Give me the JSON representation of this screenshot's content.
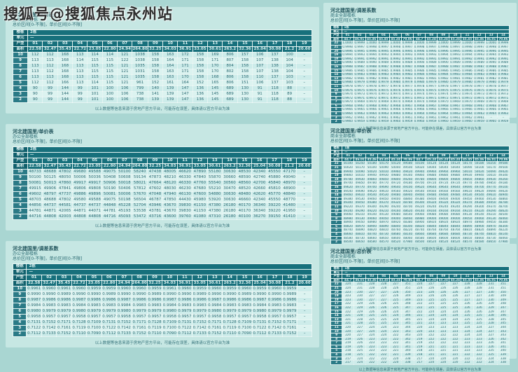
{
  "watermark": "搜狐号@搜狐焦点永州站",
  "footnote": "以上数据等信息来源于房地产官方平台，可能存在误差，具体请以官方平台为准",
  "row_labels": {
    "building": "楼栋",
    "unit": "单元",
    "type": "户型",
    "area": "面积"
  },
  "colors": {
    "page_bg": "#a9d6d2",
    "card_bg": "#c6e7e3",
    "header_bg": "#17707c",
    "floor_label_bg": "#2a7a86",
    "row_alt_a": "#cdecea",
    "row_alt_b": "#dcf3f0",
    "text_dark": "#2a6a72",
    "header_text": "#ddf2f1"
  },
  "tables": [
    {
      "title": "河北建国里/总价表",
      "subtitle": "办公全部楼栋",
      "range": "总价区间[0-不限]，单价区间[0-不限]",
      "building": "2栋",
      "unit": "—",
      "types": "01 02 03 04 05 06 07 08 09 10 11 12 13 14 15 16 17 18 19",
      "areas": "22.58 32.47 35.43 22.72 23.05 22.80 24.94 264.80 32.25 34.03 36.91 33.05 30.61 263.2 32.36 25.04 30.08 21.2 20.60",
      "rows": [
        {
          "floor": "10",
          "values": "112 112 168 113 114 114 121 1038 158 163 172 158 169 806 157 106 137 100 -"
        },
        {
          "floor": "9",
          "values": "113 113 168 114 115 115 122 1038 158 164 171 158 171 807 158 107 138 104 -"
        },
        {
          "floor": "8",
          "values": "113 112 168 113 115 115 121 1035 158 164 171 158 170 804 158 107 138 104 -"
        },
        {
          "floor": "7",
          "values": "113 112 168 113 115 115 121 1031 158 163 171 158 170 802 158 107 138 104 -"
        },
        {
          "floor": "6",
          "values": "113 113 168 113 115 115 121 1035 158 163 170 158 168 806 158 110 137 103 -"
        },
        {
          "floor": "5",
          "values": "112 112 166 113 114 115 121 961 152 161 164 152 165 806 151 106 137 103 -"
        },
        {
          "floor": "4",
          "values": "90 99 144 99 101 100 106 799 140 139 147 136 145 689 130 91 118 88 -"
        },
        {
          "floor": "3",
          "values": "90 99 144 99 101 100 106 738 141 139 147 136 145 689 130 91 118 89 -"
        },
        {
          "floor": "2",
          "values": "90 99 144 99 101 100 106 738 139 139 147 136 145 689 130 91 118 88 -"
        }
      ]
    },
    {
      "title": "河北建国里/单价表",
      "subtitle": "办公全部楼栋",
      "range": "总价区间[0-不限]，单价区间[0-不限]",
      "building": "2栋",
      "unit": "—",
      "types": "01 02 03 04 05 06 07 08 09 10 11 12 13 14 15 16 17 18 19",
      "areas": "22.58 32.47 35.43 22.72 23.05 22.80 24.94 264.80 32.25 34.03 36.91 33.05 30.61 263.2 32.36 25.04 30.08 21.2 20.60",
      "rows": [
        {
          "floor": "10",
          "values": "48733 48688 47802 49680 49588 49075 50100 58240 47438 48005 46620 47890 55180 30630 48530 42340 45550 47170 -"
        },
        {
          "floor": "9",
          "values": "50100 50125 48050 50006 50036 50408 50608 59134 47873 48210 46330 47840 55870 30660 48590 42740 45880 49040 -"
        },
        {
          "floor": "8",
          "values": "50081 50013 47860 49917 49917 50906 50018 58021 47664 48120 46330 47760 55540 30560 48560 42700 45840 48970 -"
        },
        {
          "floor": "7",
          "values": "49915 49906 47841 49806 49808 50190 50406 57812 47602 48030 46230 47680 55210 30470 48520 42660 45810 48900 -"
        },
        {
          "floor": "6",
          "values": "49602 48797 47737 49886 49896 50081 50006 57670 47048 47940 46130 47600 54880 30630 48480 42620 45770 48840 -"
        },
        {
          "floor": "5",
          "values": "48703 48688 47802 49580 49588 49075 50198 56504 46787 47850 44430 45980 53920 30630 46660 42340 45550 48770 -"
        },
        {
          "floor": "4",
          "values": "44856 44737 44581 44737 44737 44848 45228 52704 43946 43670 39830 41150 47380 26180 40170 36340 39220 41480 -"
        },
        {
          "floor": "3",
          "values": "44781 44871 42065 44871 44071 44781 45193 53538 43781 43670 39830 41150 47380 26180 40170 36340 39220 41950 -"
        },
        {
          "floor": "2",
          "values": "44716 44808 42003 44808 44808 44716 45093 53472 43716 43600 39760 41080 47310 26180 40100 36270 39150 41410 -"
        }
      ]
    },
    {
      "title": "河北建国里/调差系数",
      "subtitle": "办公全部楼栋",
      "range": "总价区间[0-不限]，单价区间[0-不限]",
      "building": "2栋",
      "unit": "—",
      "types": "01 02 03 04 05 06 07 08 09 10 11 12 13 14 15 16 17 18 19",
      "areas": "22.58 32.47 35.43 22.72 23.05 22.80 24.94 264.80 32.25 34.03 36.91 33.05 30.61 263.2 32.36 25.04 30.08 21.2 20.60",
      "rows": [
        {
          "floor": "10",
          "values": "0.9961 0.9960 0.9961 0.9960 0.9959 0.9959 0.9960 0.9960 0.9959 0.9961 0.9960 0.9959 0.9960 0.9959 0.9960 0.9959 0.9960 0.9959 -"
        },
        {
          "floor": "9",
          "values": "0.9990 0.9990 0.9989 0.9990 0.9990 0.9989 0.9990 0.9990 0.9989 0.9990 0.9990 0.9989 0.9990 0.9990 0.9989 0.9990 0.9990 0.9989 -"
        },
        {
          "floor": "8",
          "values": "0.9987 0.9986 0.9986 0.9987 0.9986 0.9986 0.9987 0.9986 0.9986 0.9987 0.9986 0.9986 0.9987 0.9986 0.9986 0.9987 0.9986 0.9986 -"
        },
        {
          "floor": "7",
          "values": "0.9984 0.9983 0.9983 0.9984 0.9983 0.9983 0.9984 0.9983 0.9983 0.9984 0.9983 0.9983 0.9984 0.9983 0.9983 0.9984 0.9983 0.9983 -"
        },
        {
          "floor": "6",
          "values": "0.9980 0.9979 0.9979 0.9980 0.9979 0.9979 0.9980 0.9979 0.9979 0.9980 0.9979 0.9979 0.9980 0.9979 0.9979 0.9980 0.9979 0.9979 -"
        },
        {
          "floor": "5",
          "values": "0.9958 0.9957 0.9957 0.9958 0.9957 0.9957 0.9958 0.9957 0.9957 0.9958 0.9957 0.9957 0.9958 0.9957 0.9957 0.9958 0.9957 0.9957 -"
        },
        {
          "floor": "4",
          "values": "0.7131 0.7152 0.7171 0.7128 0.7109 0.7131 0.7152 0.7171 0.7128 0.7109 0.7131 0.7152 0.7171 0.7128 0.7109 0.7131 0.7152 0.7171 -"
        },
        {
          "floor": "3",
          "values": "0.7122 0.7142 0.7161 0.7119 0.7100 0.7122 0.7142 0.7161 0.7119 0.7100 0.7122 0.7142 0.7161 0.7119 0.7100 0.7122 0.7142 0.7161 -"
        },
        {
          "floor": "2",
          "values": "0.7112 0.7133 0.7152 0.7110 0.7090 0.7112 0.7133 0.7152 0.7110 0.7090 0.7112 0.7133 0.7152 0.7110 0.7090 0.7112 0.7133 0.7152 -"
        }
      ]
    },
    {
      "title": "河北建国里/调差系数",
      "subtitle": "商业全部楼栋",
      "range": "总价区间[0-不限]，单价区间[0-不限]",
      "building": "1栋",
      "unit": "—",
      "types": "01 02 03 04 05 06 07 08 09 10 11 12 13 14",
      "areas": "44.7 46.01 45.46 45.45 45.24 70.86 44.7 45.24 45.24 45.24 45.45 45.46 46.01 70.86",
      "rows": [
        {
          "floor": "22",
          "values": "1.0000 0.9999 1.0000 0.9999 1.0000 0.9999 1.0000 0.9999 1.0000 0.9999 1.0000 0.9999 1.0000 0.9999"
        },
        {
          "floor": "21",
          "values": "0.9998 0.9997 0.9998 0.9997 0.9998 0.9997 0.9998 0.9997 0.9998 0.9997 0.9998 0.9997 0.9998 0.9997"
        },
        {
          "floor": "20",
          "values": "0.9996 0.9995 0.9996 0.9995 0.9996 0.9995 0.9996 0.9995 0.9996 0.9995 0.9996 0.9995 0.9996 0.9995"
        },
        {
          "floor": "19",
          "values": "0.9994 0.9993 0.9994 0.9993 0.9994 0.9993 0.9994 0.9993 0.9994 0.9993 0.9994 0.9993 0.9994 0.9993"
        },
        {
          "floor": "18",
          "values": "0.9992 0.9991 0.9992 0.9991 0.9992 0.9991 0.9992 0.9991 0.9992 0.9991 0.9992 0.9991 0.9992 0.9991"
        },
        {
          "floor": "17",
          "values": "0.9990 0.9989 0.9990 0.9989 0.9990 0.9989 0.9990 0.9989 0.9990 0.9989 0.9990 0.9989 0.9990 0.9989"
        },
        {
          "floor": "16",
          "values": "0.9988 0.9987 0.9988 0.9987 0.9988 0.9987 0.9988 0.9987 0.9988 0.9987 0.9988 0.9987 0.9988 0.9987"
        },
        {
          "floor": "15",
          "values": "0.9986 0.9985 0.9986 0.9985 0.9986 0.9985 0.9986 0.9985 0.9986 0.9985 0.9986 0.9985 0.9986 0.9985"
        },
        {
          "floor": "14",
          "values": "0.9984 0.9983 0.9984 0.9983 0.9984 0.9983 0.9984 0.9983 0.9984 0.9983 0.9984 0.9983 0.9984 0.9983"
        },
        {
          "floor": "13",
          "values": "0.9982 0.9981 0.9982 0.9981 0.9982 0.9981 0.9982 0.9981 0.9982 0.9981 0.9982 0.9981 0.9982 0.9981"
        },
        {
          "floor": "12",
          "values": "0.9980 0.9979 0.9980 0.9979 0.9980 0.9979 0.9980 0.9979 0.9980 0.9979 0.9980 0.9979 0.9980 0.9979"
        },
        {
          "floor": "11",
          "values": "0.9978 0.9977 0.9978 0.9977 0.9978 0.9977 0.9978 0.9977 0.9978 0.9977 0.9978 0.9977 0.9978 0.9977"
        },
        {
          "floor": "10",
          "values": "0.9976 0.9975 0.9976 0.9975 0.9976 0.9975 0.9976 0.9975 0.9976 0.9975 0.9976 0.9975 0.9976 0.9975"
        },
        {
          "floor": "9",
          "values": "0.9974 0.9973 0.9974 0.9973 0.9974 0.9973 0.9974 0.9973 0.9974 0.9973 0.9974 0.9973 0.9974 0.9973"
        },
        {
          "floor": "8",
          "values": "0.9972 0.9971 0.9972 0.9971 0.9972 0.9971 0.9972 0.9971 0.9972 0.9971 0.9972 0.9971 0.9972 0.9971"
        },
        {
          "floor": "7",
          "values": "0.9970 0.9969 0.9970 0.9969 0.9970 0.9969 0.9970 0.9969 0.9970 0.9969 0.9970 0.9969 0.9970 0.9969"
        },
        {
          "floor": "6",
          "values": "0.9968 0.9967 0.9968 0.9967 0.9968 0.9967 0.9968 0.9967 0.9968 0.9967 0.9968 0.9967 0.9968 0.9967"
        },
        {
          "floor": "5",
          "values": "0.9966 0.9965 0.9966 0.9965 0.9966 0.9965 0.9966 0.9965 0.9966 0.9965 0.9966 0.9965 0.9966 0.9965"
        },
        {
          "floor": "4",
          "values": "0.9964 0.9963 0.9964 0.9963 0.9964 0.9963 0.9964 0.9963 0.9964 0.9963 0.9964 0.9963 0.9964 0.9963"
        },
        {
          "floor": "3",
          "values": "0.9962 0.9961 0.9962 0.9961 0.9962 0.9961 0.9962 0.9961 0.9962 0.9961 0.9962 0.9961 - -"
        },
        {
          "floor": "2",
          "values": "0.9960 0.9959 0.9960 0.9959 0.9960 0.9959 0.9960 0.9959 0.9960 0.9959 0.9960 0.9959 0.9960 0.9959"
        }
      ]
    },
    {
      "title": "河北建国里/单价表",
      "subtitle": "商业全部楼栋",
      "range": "总价区间[0-不限]，单价区间[0-不限]",
      "building": "1栋",
      "unit": "—",
      "types": "01 02 03 04 05 06 07 08 09 10 11 12 13 14",
      "areas": "44.7 46.01 45.46 45.45 45.24 70.86 44.7 45.24 45.24 45.24 45.45 45.46 46.01 70.86",
      "rows": [
        {
          "floor": "22",
          "values": "50100 50250 50180 50170 50120 49580 50100 50120 50120 50120 50170 50180 50250 49580"
        },
        {
          "floor": "21",
          "values": "50020 50170 50100 50090 50040 49500 50020 50040 50040 50040 50090 50100 50170 49500"
        },
        {
          "floor": "20",
          "values": "49940 50090 50020 50010 49960 49420 49940 49960 49960 49960 50010 50020 50090 49420"
        },
        {
          "floor": "19",
          "values": "49860 50010 49940 49930 49880 49340 49860 49880 49880 49880 49930 49940 50010 49340"
        },
        {
          "floor": "18",
          "values": "49780 49930 49860 49850 49800 49260 49780 49800 49800 49800 49850 49860 49930 49260"
        },
        {
          "floor": "17",
          "values": "49700 49850 49780 49770 49720 49180 49700 49720 49720 49720 49770 49780 49850 49180"
        },
        {
          "floor": "16",
          "values": "49620 49770 49700 49690 49640 49100 49620 49640 49640 49640 49690 49700 49770 49100"
        },
        {
          "floor": "15",
          "values": "49540 49690 49620 49610 49560 49020 49540 49560 49560 49560 49610 49620 49690 49020"
        },
        {
          "floor": "14",
          "values": "49460 49610 49540 49530 49480 48940 49460 49480 49480 49480 49530 49540 49610 48940"
        },
        {
          "floor": "13",
          "values": "49380 49530 49460 49450 49400 48860 49380 49400 49400 49400 49450 49460 49530 48860"
        },
        {
          "floor": "12",
          "values": "49300 49450 49380 49370 49320 48780 49300 49320 49320 49320 49370 49380 49450 48780"
        },
        {
          "floor": "11",
          "values": "49220 49370 49300 49290 49240 48700 49220 49240 49240 49240 49290 49300 49370 48700"
        },
        {
          "floor": "10",
          "values": "49140 49290 49220 49210 49160 48620 49140 49160 49160 49160 49210 49220 49290 48620"
        },
        {
          "floor": "9",
          "values": "49060 49210 49140 49130 49080 48540 49060 49080 49080 49080 49130 49140 49210 48540"
        },
        {
          "floor": "8",
          "values": "48980 49130 49060 49050 49000 48460 48980 49000 49000 49000 49050 49060 49130 48460"
        },
        {
          "floor": "7",
          "values": "48900 49050 48980 48970 48920 48380 48900 48920 48920 48920 48970 48980 49050 48380"
        },
        {
          "floor": "6",
          "values": "48820 48970 48900 48890 48840 48300 48820 48840 48840 48840 48890 48900 48970 48300"
        },
        {
          "floor": "5",
          "values": "48740 48890 48820 48810 48760 48220 48740 48760 48760 48760 48810 48820 48890 48220"
        },
        {
          "floor": "4",
          "values": "48660 48810 48740 48730 48680 48140 48660 48680 48680 48680 48730 48740 48810 48140"
        },
        {
          "floor": "3",
          "values": "48580 48730 48660 48650 48600 48060 48580 48600 48600 48600 48650 48660 48730 48060"
        },
        {
          "floor": "2",
          "values": "48500 48650 48580 48570 48520 47980 48500 48520 48520 48520 48570 48580 48650 47980"
        }
      ]
    },
    {
      "title": "河北建国里/总价表",
      "subtitle": "商业全部楼栋",
      "range": "总价区间[0-不限]，单价区间[0-不限]",
      "building": "1栋",
      "unit": "—",
      "types": "01 02 03 04 05 06 07 08 09 10 11 12 13 14",
      "areas": "44.7 46.01 45.46 45.45 45.24 70.86 44.7 45.24 45.24 45.24 45.45 45.46 46.01 70.86",
      "rows": [
        {
          "floor": "22",
          "values": "224 231 228 228 227 351 224 227 227 227 228 228 231 351"
        },
        {
          "floor": "21",
          "values": "224 231 228 228 226 351 224 226 226 226 228 228 231 351"
        },
        {
          "floor": "20",
          "values": "223 230 227 227 226 350 223 226 226 226 227 227 230 350"
        },
        {
          "floor": "19",
          "values": "223 230 227 227 226 349 223 226 226 226 227 227 230 349"
        },
        {
          "floor": "18",
          "values": "223 230 227 227 225 349 223 225 225 225 227 227 230 349"
        },
        {
          "floor": "17",
          "values": "222 229 226 226 225 348 222 225 225 225 226 226 229 348"
        },
        {
          "floor": "16",
          "values": "222 229 226 226 225 347 222 225 225 225 226 226 229 347"
        },
        {
          "floor": "15",
          "values": "222 229 226 226 224 347 222 224 224 224 226 226 229 347"
        },
        {
          "floor": "14",
          "values": "221 228 225 225 224 346 221 224 224 224 225 225 228 346"
        },
        {
          "floor": "13",
          "values": "221 228 225 225 224 345 221 224 224 224 225 225 228 345"
        },
        {
          "floor": "12",
          "values": "221 228 225 225 223 345 221 223 223 223 225 225 228 345"
        },
        {
          "floor": "11",
          "values": "220 227 224 224 223 344 220 223 223 223 224 224 227 344"
        },
        {
          "floor": "10",
          "values": "220 227 224 224 223 343 220 223 223 223 224 224 227 343"
        },
        {
          "floor": "9",
          "values": "220 227 224 224 222 343 220 222 222 222 224 224 227 343"
        },
        {
          "floor": "8",
          "values": "219 226 223 223 222 342 219 222 222 222 223 223 226 342"
        },
        {
          "floor": "7",
          "values": "219 226 223 223 222 341 219 222 222 222 223 223 226 341"
        },
        {
          "floor": "6",
          "values": "219 226 223 223 221 341 219 221 221 221 223 223 226 341"
        },
        {
          "floor": "5",
          "values": "218 225 223 223 221 340 218 221 221 221 223 223 225 340"
        },
        {
          "floor": "4",
          "values": "218 225 222 222 221 339 218 221 221 221 222 222 225 339"
        },
        {
          "floor": "3",
          "values": "217 224 222 222 220 338 217 220 220 220 222 222 224 338"
        },
        {
          "floor": "2",
          "values": "217 224 222 222 220 338 217 220 220 220 222 222 224 338"
        }
      ]
    }
  ]
}
